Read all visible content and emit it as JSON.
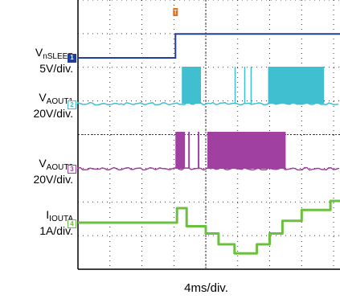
{
  "chart_data": {
    "type": "line",
    "time_scale": "4ms/div.",
    "channels": [
      {
        "id": "1",
        "name": "V",
        "sub": "nSLEEP",
        "scale": "5V/div.",
        "color": "#1f3f9a",
        "segments": [
          [
            0,
            0
          ],
          [
            3.05,
            0
          ],
          [
            3.05,
            1.35
          ],
          [
            10,
            1.35
          ]
        ]
      },
      {
        "id": "2",
        "name": "V",
        "sub": "AOUT1",
        "scale": "20V/div.",
        "color": "#3fbfcf",
        "bursts": [
          [
            3.25,
            3.85
          ],
          [
            4.9,
            4.93
          ],
          [
            5.2,
            5.23
          ],
          [
            5.4,
            5.43
          ],
          [
            5.95,
            7.7
          ]
        ]
      },
      {
        "id": "3",
        "name": "V",
        "sub": "AOUT2",
        "scale": "20V/div.",
        "color": "#a040a0",
        "bursts": [
          [
            3.05,
            3.35
          ],
          [
            3.45,
            3.5
          ],
          [
            3.75,
            3.8
          ],
          [
            4.05,
            6.5
          ]
        ]
      },
      {
        "id": "4",
        "name": "I",
        "sub": "IOUTA",
        "scale": "1A/div.",
        "color": "#6cc040",
        "steps": [
          [
            0,
            0
          ],
          [
            3.1,
            0
          ],
          [
            3.1,
            0.4
          ],
          [
            3.4,
            0.4
          ],
          [
            3.4,
            -0.1
          ],
          [
            4.0,
            -0.1
          ],
          [
            4.0,
            -0.3
          ],
          [
            4.4,
            -0.3
          ],
          [
            4.4,
            -0.6
          ],
          [
            4.9,
            -0.6
          ],
          [
            4.9,
            -0.85
          ],
          [
            5.6,
            -0.85
          ],
          [
            5.6,
            -0.6
          ],
          [
            6.0,
            -0.6
          ],
          [
            6.0,
            -0.3
          ],
          [
            6.4,
            -0.3
          ],
          [
            6.4,
            0.05
          ],
          [
            7.0,
            0.05
          ],
          [
            7.0,
            0.35
          ],
          [
            7.9,
            0.35
          ],
          [
            7.9,
            0.6
          ],
          [
            8.6,
            0.6
          ],
          [
            8.6,
            0.85
          ],
          [
            9.6,
            0.85
          ],
          [
            9.6,
            0.6
          ],
          [
            10,
            0.6
          ]
        ]
      }
    ],
    "trigger_marker": "T",
    "grid": true
  }
}
